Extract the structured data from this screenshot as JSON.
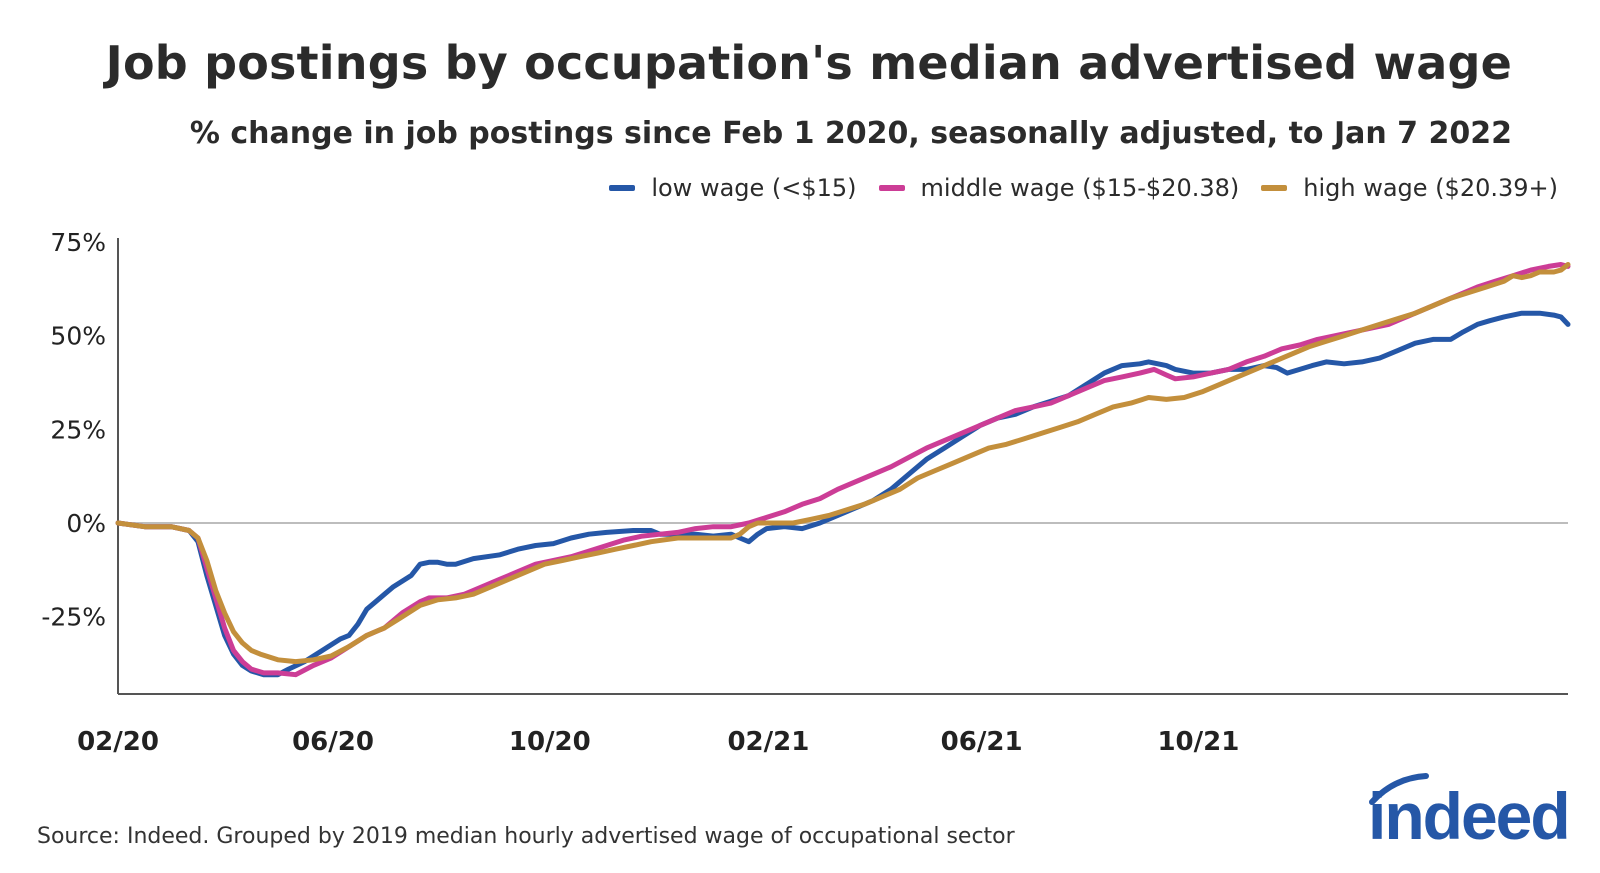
{
  "title": "Job postings by occupation's median advertised wage",
  "subtitle": "% change in job postings since Feb 1 2020, seasonally adjusted, to Jan 7 2022",
  "source": "Source: Indeed. Grouped by 2019 median hourly advertised wage of occupational sector",
  "logo_text": "indeed",
  "chart_data": {
    "type": "line",
    "y_ticks": [
      {
        "v": 75,
        "label": "75%"
      },
      {
        "v": 50,
        "label": "50%"
      },
      {
        "v": 25,
        "label": "25%"
      },
      {
        "v": 0,
        "label": "0%"
      },
      {
        "v": -25,
        "label": "-25%"
      }
    ],
    "x_ticks": [
      {
        "d": 0,
        "label": "02/20"
      },
      {
        "d": 121,
        "label": "06/20"
      },
      {
        "d": 243,
        "label": "10/20"
      },
      {
        "d": 366,
        "label": "02/21"
      },
      {
        "d": 486,
        "label": "06/21"
      },
      {
        "d": 608,
        "label": "10/21"
      }
    ],
    "ylim": [
      -46,
      75
    ],
    "grid": false,
    "legend_position": "top-right",
    "series": [
      {
        "name": "low wage (<$15)",
        "color": "#2557a7",
        "points": [
          [
            0,
            0
          ],
          [
            15,
            -1
          ],
          [
            30,
            -1
          ],
          [
            40,
            -2
          ],
          [
            45,
            -5
          ],
          [
            50,
            -14
          ],
          [
            55,
            -22
          ],
          [
            60,
            -30
          ],
          [
            65,
            -35
          ],
          [
            70,
            -38
          ],
          [
            75,
            -39.5
          ],
          [
            82,
            -40.5
          ],
          [
            90,
            -40.5
          ],
          [
            96,
            -39
          ],
          [
            105,
            -37
          ],
          [
            115,
            -34
          ],
          [
            125,
            -31
          ],
          [
            130,
            -30
          ],
          [
            135,
            -27
          ],
          [
            140,
            -23
          ],
          [
            145,
            -21
          ],
          [
            150,
            -19
          ],
          [
            155,
            -17
          ],
          [
            160,
            -15.5
          ],
          [
            165,
            -14
          ],
          [
            170,
            -11
          ],
          [
            175,
            -10.5
          ],
          [
            180,
            -10.5
          ],
          [
            185,
            -11
          ],
          [
            190,
            -11
          ],
          [
            200,
            -9.5
          ],
          [
            215,
            -8.5
          ],
          [
            225,
            -7
          ],
          [
            235,
            -6
          ],
          [
            245,
            -5.5
          ],
          [
            255,
            -4
          ],
          [
            265,
            -3
          ],
          [
            275,
            -2.5
          ],
          [
            290,
            -2
          ],
          [
            300,
            -2
          ],
          [
            305,
            -3
          ],
          [
            315,
            -3
          ],
          [
            325,
            -3
          ],
          [
            335,
            -3.5
          ],
          [
            345,
            -3
          ],
          [
            350,
            -4
          ],
          [
            355,
            -5
          ],
          [
            360,
            -3
          ],
          [
            365,
            -1.5
          ],
          [
            375,
            -1
          ],
          [
            385,
            -1.5
          ],
          [
            395,
            0
          ],
          [
            405,
            2
          ],
          [
            415,
            4
          ],
          [
            425,
            6
          ],
          [
            435,
            9
          ],
          [
            445,
            13
          ],
          [
            455,
            17
          ],
          [
            465,
            20
          ],
          [
            475,
            23
          ],
          [
            485,
            26
          ],
          [
            495,
            28
          ],
          [
            505,
            29
          ],
          [
            515,
            31
          ],
          [
            525,
            32.5
          ],
          [
            535,
            34
          ],
          [
            545,
            37
          ],
          [
            555,
            40
          ],
          [
            565,
            42
          ],
          [
            575,
            42.5
          ],
          [
            580,
            43
          ],
          [
            590,
            42
          ],
          [
            595,
            41
          ],
          [
            605,
            40
          ],
          [
            615,
            40
          ],
          [
            625,
            41
          ],
          [
            635,
            41
          ],
          [
            645,
            42
          ],
          [
            652,
            41.5
          ],
          [
            658,
            40
          ],
          [
            665,
            41
          ],
          [
            672,
            42
          ],
          [
            680,
            43
          ],
          [
            690,
            42.5
          ],
          [
            700,
            43
          ],
          [
            710,
            44
          ],
          [
            720,
            46
          ],
          [
            730,
            48
          ],
          [
            740,
            49
          ],
          [
            750,
            49
          ],
          [
            757,
            51
          ],
          [
            765,
            53
          ],
          [
            772,
            54
          ],
          [
            780,
            55
          ],
          [
            790,
            56
          ],
          [
            800,
            56
          ],
          [
            808,
            55.5
          ],
          [
            812,
            55
          ],
          [
            816,
            53
          ]
        ]
      },
      {
        "name": "middle wage ($15-$20.38)",
        "color": "#cc3d96",
        "points": [
          [
            0,
            0
          ],
          [
            15,
            -1
          ],
          [
            30,
            -1
          ],
          [
            40,
            -2
          ],
          [
            45,
            -4
          ],
          [
            50,
            -12
          ],
          [
            55,
            -20
          ],
          [
            60,
            -28
          ],
          [
            65,
            -34
          ],
          [
            70,
            -37
          ],
          [
            75,
            -39
          ],
          [
            82,
            -40
          ],
          [
            90,
            -40
          ],
          [
            100,
            -40.5
          ],
          [
            110,
            -38
          ],
          [
            120,
            -36
          ],
          [
            130,
            -33
          ],
          [
            140,
            -30
          ],
          [
            150,
            -28
          ],
          [
            160,
            -24
          ],
          [
            170,
            -21
          ],
          [
            175,
            -20
          ],
          [
            185,
            -20
          ],
          [
            195,
            -19
          ],
          [
            205,
            -17
          ],
          [
            215,
            -15
          ],
          [
            225,
            -13
          ],
          [
            235,
            -11
          ],
          [
            245,
            -10
          ],
          [
            255,
            -9
          ],
          [
            265,
            -7.5
          ],
          [
            275,
            -6
          ],
          [
            285,
            -4.5
          ],
          [
            295,
            -3.5
          ],
          [
            305,
            -3
          ],
          [
            315,
            -2.5
          ],
          [
            325,
            -1.5
          ],
          [
            335,
            -1
          ],
          [
            345,
            -1
          ],
          [
            355,
            0
          ],
          [
            365,
            1.5
          ],
          [
            375,
            3
          ],
          [
            385,
            5
          ],
          [
            395,
            6.5
          ],
          [
            405,
            9
          ],
          [
            415,
            11
          ],
          [
            425,
            13
          ],
          [
            435,
            15
          ],
          [
            445,
            17.5
          ],
          [
            455,
            20
          ],
          [
            465,
            22
          ],
          [
            475,
            24
          ],
          [
            485,
            26
          ],
          [
            495,
            28
          ],
          [
            505,
            30
          ],
          [
            515,
            31
          ],
          [
            525,
            32
          ],
          [
            535,
            34
          ],
          [
            545,
            36
          ],
          [
            555,
            38
          ],
          [
            565,
            39
          ],
          [
            575,
            40
          ],
          [
            583,
            41
          ],
          [
            590,
            39.5
          ],
          [
            595,
            38.5
          ],
          [
            605,
            39
          ],
          [
            615,
            40
          ],
          [
            625,
            41
          ],
          [
            635,
            43
          ],
          [
            645,
            44.5
          ],
          [
            655,
            46.5
          ],
          [
            665,
            47.5
          ],
          [
            675,
            49
          ],
          [
            685,
            50
          ],
          [
            695,
            51
          ],
          [
            705,
            52
          ],
          [
            715,
            53
          ],
          [
            725,
            55
          ],
          [
            735,
            57
          ],
          [
            745,
            59
          ],
          [
            755,
            61
          ],
          [
            765,
            63
          ],
          [
            775,
            64.5
          ],
          [
            785,
            66
          ],
          [
            795,
            67.5
          ],
          [
            805,
            68.5
          ],
          [
            812,
            69
          ],
          [
            816,
            68.5
          ]
        ]
      },
      {
        "name": "high wage ($20.39+)",
        "color": "#c38f3c",
        "points": [
          [
            0,
            0
          ],
          [
            15,
            -1
          ],
          [
            30,
            -1
          ],
          [
            40,
            -2
          ],
          [
            45,
            -4
          ],
          [
            50,
            -10
          ],
          [
            55,
            -18
          ],
          [
            60,
            -24
          ],
          [
            65,
            -29
          ],
          [
            70,
            -32
          ],
          [
            75,
            -34
          ],
          [
            80,
            -35
          ],
          [
            90,
            -36.5
          ],
          [
            100,
            -37
          ],
          [
            110,
            -36.5
          ],
          [
            120,
            -35.5
          ],
          [
            130,
            -33
          ],
          [
            140,
            -30
          ],
          [
            150,
            -28
          ],
          [
            160,
            -25
          ],
          [
            170,
            -22
          ],
          [
            180,
            -20.5
          ],
          [
            190,
            -20
          ],
          [
            200,
            -19
          ],
          [
            210,
            -17
          ],
          [
            220,
            -15
          ],
          [
            230,
            -13
          ],
          [
            240,
            -11
          ],
          [
            250,
            -10
          ],
          [
            260,
            -9
          ],
          [
            270,
            -8
          ],
          [
            280,
            -7
          ],
          [
            290,
            -6
          ],
          [
            300,
            -5
          ],
          [
            315,
            -4
          ],
          [
            325,
            -4
          ],
          [
            335,
            -4
          ],
          [
            345,
            -4
          ],
          [
            350,
            -3
          ],
          [
            355,
            -1
          ],
          [
            360,
            0
          ],
          [
            370,
            0
          ],
          [
            380,
            0
          ],
          [
            390,
            1
          ],
          [
            400,
            2
          ],
          [
            410,
            3.5
          ],
          [
            420,
            5
          ],
          [
            430,
            7
          ],
          [
            440,
            9
          ],
          [
            450,
            12
          ],
          [
            460,
            14
          ],
          [
            470,
            16
          ],
          [
            480,
            18
          ],
          [
            490,
            20
          ],
          [
            500,
            21
          ],
          [
            510,
            22.5
          ],
          [
            520,
            24
          ],
          [
            530,
            25.5
          ],
          [
            540,
            27
          ],
          [
            550,
            29
          ],
          [
            560,
            31
          ],
          [
            570,
            32
          ],
          [
            580,
            33.5
          ],
          [
            590,
            33
          ],
          [
            600,
            33.5
          ],
          [
            610,
            35
          ],
          [
            620,
            37
          ],
          [
            630,
            39
          ],
          [
            640,
            41
          ],
          [
            650,
            43
          ],
          [
            660,
            45
          ],
          [
            670,
            47
          ],
          [
            680,
            48.5
          ],
          [
            690,
            50
          ],
          [
            700,
            51.5
          ],
          [
            710,
            53
          ],
          [
            720,
            54.5
          ],
          [
            730,
            56
          ],
          [
            740,
            58
          ],
          [
            750,
            60
          ],
          [
            760,
            61.5
          ],
          [
            770,
            63
          ],
          [
            780,
            64.5
          ],
          [
            785,
            66
          ],
          [
            790,
            65.5
          ],
          [
            795,
            66
          ],
          [
            800,
            67
          ],
          [
            808,
            67
          ],
          [
            812,
            67.5
          ],
          [
            816,
            69
          ]
        ]
      }
    ]
  }
}
